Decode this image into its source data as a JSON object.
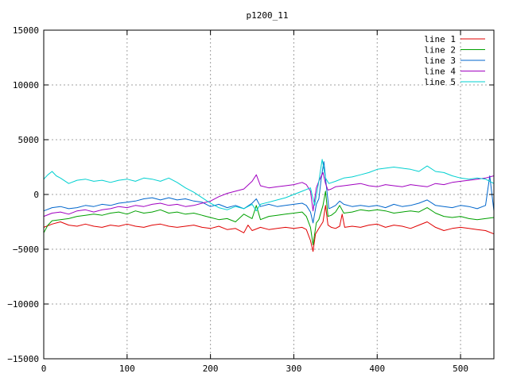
{
  "chart_data": {
    "type": "line",
    "title": "p1200_11",
    "xlabel": "",
    "ylabel": "",
    "xlim": [
      0,
      540
    ],
    "ylim": [
      -15000,
      15000
    ],
    "xticks": [
      0,
      100,
      200,
      300,
      400,
      500
    ],
    "yticks": [
      -15000,
      -10000,
      -5000,
      0,
      5000,
      10000,
      15000
    ],
    "xtick_labels": [
      "0",
      "100",
      "200",
      "300",
      "400",
      "500"
    ],
    "ytick_labels": [
      "−15000",
      "−10000",
      "−5000",
      "0",
      "5000",
      "10000",
      "15000"
    ],
    "grid": true,
    "legend_position": "top-right",
    "series": [
      {
        "name": "line 1",
        "color": "#e00000",
        "points": [
          [
            0,
            -3000
          ],
          [
            10,
            -2700
          ],
          [
            20,
            -2500
          ],
          [
            30,
            -2800
          ],
          [
            40,
            -2900
          ],
          [
            50,
            -2700
          ],
          [
            60,
            -2900
          ],
          [
            70,
            -3000
          ],
          [
            80,
            -2800
          ],
          [
            90,
            -2900
          ],
          [
            100,
            -2700
          ],
          [
            110,
            -2900
          ],
          [
            120,
            -3000
          ],
          [
            130,
            -2800
          ],
          [
            140,
            -2700
          ],
          [
            150,
            -2900
          ],
          [
            160,
            -3000
          ],
          [
            170,
            -2900
          ],
          [
            180,
            -2800
          ],
          [
            190,
            -3000
          ],
          [
            200,
            -3100
          ],
          [
            210,
            -2900
          ],
          [
            220,
            -3200
          ],
          [
            230,
            -3100
          ],
          [
            240,
            -3500
          ],
          [
            245,
            -2800
          ],
          [
            250,
            -3300
          ],
          [
            260,
            -3000
          ],
          [
            270,
            -3200
          ],
          [
            280,
            -3100
          ],
          [
            290,
            -3000
          ],
          [
            300,
            -3100
          ],
          [
            310,
            -3000
          ],
          [
            315,
            -3200
          ],
          [
            320,
            -4200
          ],
          [
            323,
            -5200
          ],
          [
            326,
            -3600
          ],
          [
            330,
            -3100
          ],
          [
            335,
            -2500
          ],
          [
            338,
            -1000
          ],
          [
            341,
            -2800
          ],
          [
            345,
            -3000
          ],
          [
            350,
            -3100
          ],
          [
            355,
            -2900
          ],
          [
            358,
            -1800
          ],
          [
            361,
            -3000
          ],
          [
            370,
            -2900
          ],
          [
            380,
            -3000
          ],
          [
            390,
            -2800
          ],
          [
            400,
            -2700
          ],
          [
            410,
            -3000
          ],
          [
            420,
            -2800
          ],
          [
            430,
            -2900
          ],
          [
            440,
            -3100
          ],
          [
            450,
            -2800
          ],
          [
            460,
            -2500
          ],
          [
            470,
            -3000
          ],
          [
            480,
            -3300
          ],
          [
            490,
            -3100
          ],
          [
            500,
            -3000
          ],
          [
            510,
            -3100
          ],
          [
            520,
            -3200
          ],
          [
            530,
            -3300
          ],
          [
            540,
            -3600
          ]
        ]
      },
      {
        "name": "line 2",
        "color": "#00a000",
        "points": [
          [
            0,
            -3500
          ],
          [
            5,
            -2800
          ],
          [
            10,
            -2400
          ],
          [
            20,
            -2300
          ],
          [
            30,
            -2200
          ],
          [
            40,
            -2000
          ],
          [
            50,
            -1900
          ],
          [
            60,
            -1800
          ],
          [
            70,
            -1900
          ],
          [
            80,
            -1700
          ],
          [
            90,
            -1600
          ],
          [
            100,
            -1800
          ],
          [
            110,
            -1500
          ],
          [
            120,
            -1700
          ],
          [
            130,
            -1600
          ],
          [
            140,
            -1400
          ],
          [
            150,
            -1700
          ],
          [
            160,
            -1600
          ],
          [
            170,
            -1800
          ],
          [
            180,
            -1700
          ],
          [
            190,
            -1900
          ],
          [
            200,
            -2100
          ],
          [
            210,
            -2300
          ],
          [
            220,
            -2200
          ],
          [
            230,
            -2500
          ],
          [
            240,
            -1800
          ],
          [
            250,
            -2200
          ],
          [
            255,
            -1000
          ],
          [
            260,
            -2300
          ],
          [
            270,
            -2000
          ],
          [
            280,
            -1900
          ],
          [
            290,
            -1800
          ],
          [
            300,
            -1700
          ],
          [
            310,
            -1600
          ],
          [
            315,
            -2000
          ],
          [
            320,
            -3000
          ],
          [
            323,
            -4600
          ],
          [
            327,
            -2600
          ],
          [
            330,
            -2300
          ],
          [
            335,
            -1000
          ],
          [
            338,
            300
          ],
          [
            341,
            -2000
          ],
          [
            345,
            -1900
          ],
          [
            350,
            -1600
          ],
          [
            355,
            -1000
          ],
          [
            360,
            -1700
          ],
          [
            370,
            -1600
          ],
          [
            380,
            -1400
          ],
          [
            390,
            -1500
          ],
          [
            400,
            -1400
          ],
          [
            410,
            -1500
          ],
          [
            420,
            -1700
          ],
          [
            430,
            -1600
          ],
          [
            440,
            -1500
          ],
          [
            450,
            -1600
          ],
          [
            460,
            -1200
          ],
          [
            470,
            -1700
          ],
          [
            480,
            -2000
          ],
          [
            490,
            -2100
          ],
          [
            500,
            -2000
          ],
          [
            510,
            -2200
          ],
          [
            520,
            -2300
          ],
          [
            530,
            -2200
          ],
          [
            540,
            -2100
          ]
        ]
      },
      {
        "name": "line 3",
        "color": "#0066cc",
        "points": [
          [
            0,
            -1500
          ],
          [
            10,
            -1200
          ],
          [
            20,
            -1100
          ],
          [
            30,
            -1300
          ],
          [
            40,
            -1200
          ],
          [
            50,
            -1000
          ],
          [
            60,
            -1100
          ],
          [
            70,
            -900
          ],
          [
            80,
            -1000
          ],
          [
            90,
            -800
          ],
          [
            100,
            -700
          ],
          [
            110,
            -600
          ],
          [
            120,
            -400
          ],
          [
            130,
            -300
          ],
          [
            140,
            -500
          ],
          [
            150,
            -300
          ],
          [
            160,
            -500
          ],
          [
            170,
            -400
          ],
          [
            180,
            -600
          ],
          [
            190,
            -700
          ],
          [
            200,
            -1100
          ],
          [
            210,
            -900
          ],
          [
            220,
            -1200
          ],
          [
            230,
            -1000
          ],
          [
            240,
            -1300
          ],
          [
            250,
            -800
          ],
          [
            255,
            -400
          ],
          [
            260,
            -1100
          ],
          [
            270,
            -900
          ],
          [
            280,
            -1100
          ],
          [
            290,
            -1000
          ],
          [
            300,
            -900
          ],
          [
            310,
            -800
          ],
          [
            315,
            -1000
          ],
          [
            320,
            -1600
          ],
          [
            323,
            -2600
          ],
          [
            327,
            -900
          ],
          [
            330,
            -400
          ],
          [
            333,
            1500
          ],
          [
            336,
            3000
          ],
          [
            339,
            800
          ],
          [
            342,
            -1300
          ],
          [
            345,
            -1200
          ],
          [
            350,
            -1000
          ],
          [
            355,
            -600
          ],
          [
            360,
            -900
          ],
          [
            370,
            -1100
          ],
          [
            380,
            -1000
          ],
          [
            390,
            -1100
          ],
          [
            400,
            -1000
          ],
          [
            410,
            -1200
          ],
          [
            420,
            -900
          ],
          [
            430,
            -1100
          ],
          [
            440,
            -1000
          ],
          [
            450,
            -800
          ],
          [
            460,
            -500
          ],
          [
            470,
            -1000
          ],
          [
            480,
            -1100
          ],
          [
            490,
            -1200
          ],
          [
            500,
            -1000
          ],
          [
            510,
            -1100
          ],
          [
            520,
            -1300
          ],
          [
            530,
            -1000
          ],
          [
            535,
            1700
          ],
          [
            540,
            -1500
          ]
        ]
      },
      {
        "name": "line 4",
        "color": "#a000c0",
        "points": [
          [
            0,
            -2000
          ],
          [
            10,
            -1700
          ],
          [
            20,
            -1600
          ],
          [
            30,
            -1800
          ],
          [
            40,
            -1500
          ],
          [
            50,
            -1400
          ],
          [
            60,
            -1600
          ],
          [
            70,
            -1400
          ],
          [
            80,
            -1300
          ],
          [
            90,
            -1100
          ],
          [
            100,
            -1200
          ],
          [
            110,
            -1000
          ],
          [
            120,
            -1100
          ],
          [
            130,
            -900
          ],
          [
            140,
            -800
          ],
          [
            150,
            -1000
          ],
          [
            160,
            -900
          ],
          [
            170,
            -1100
          ],
          [
            180,
            -1000
          ],
          [
            190,
            -800
          ],
          [
            200,
            -600
          ],
          [
            210,
            -200
          ],
          [
            220,
            100
          ],
          [
            230,
            300
          ],
          [
            240,
            500
          ],
          [
            250,
            1200
          ],
          [
            255,
            1800
          ],
          [
            260,
            800
          ],
          [
            270,
            600
          ],
          [
            280,
            700
          ],
          [
            290,
            800
          ],
          [
            300,
            900
          ],
          [
            310,
            1100
          ],
          [
            315,
            900
          ],
          [
            320,
            300
          ],
          [
            323,
            -1500
          ],
          [
            327,
            600
          ],
          [
            330,
            1200
          ],
          [
            335,
            2000
          ],
          [
            338,
            1000
          ],
          [
            341,
            400
          ],
          [
            345,
            500
          ],
          [
            350,
            700
          ],
          [
            360,
            800
          ],
          [
            370,
            900
          ],
          [
            380,
            1000
          ],
          [
            390,
            800
          ],
          [
            400,
            700
          ],
          [
            410,
            900
          ],
          [
            420,
            800
          ],
          [
            430,
            700
          ],
          [
            440,
            900
          ],
          [
            450,
            800
          ],
          [
            460,
            700
          ],
          [
            470,
            1000
          ],
          [
            480,
            900
          ],
          [
            490,
            1100
          ],
          [
            500,
            1200
          ],
          [
            510,
            1300
          ],
          [
            520,
            1400
          ],
          [
            530,
            1500
          ],
          [
            540,
            1700
          ]
        ]
      },
      {
        "name": "line 5",
        "color": "#00d0d0",
        "points": [
          [
            0,
            1400
          ],
          [
            5,
            1800
          ],
          [
            10,
            2100
          ],
          [
            15,
            1700
          ],
          [
            20,
            1500
          ],
          [
            30,
            1000
          ],
          [
            40,
            1300
          ],
          [
            50,
            1400
          ],
          [
            60,
            1200
          ],
          [
            70,
            1300
          ],
          [
            80,
            1100
          ],
          [
            90,
            1300
          ],
          [
            100,
            1400
          ],
          [
            110,
            1200
          ],
          [
            120,
            1500
          ],
          [
            130,
            1400
          ],
          [
            140,
            1200
          ],
          [
            150,
            1500
          ],
          [
            160,
            1100
          ],
          [
            170,
            600
          ],
          [
            180,
            200
          ],
          [
            190,
            -300
          ],
          [
            200,
            -800
          ],
          [
            210,
            -1200
          ],
          [
            220,
            -1400
          ],
          [
            230,
            -1100
          ],
          [
            240,
            -1300
          ],
          [
            250,
            -900
          ],
          [
            255,
            -1500
          ],
          [
            260,
            -900
          ],
          [
            270,
            -700
          ],
          [
            280,
            -500
          ],
          [
            290,
            -300
          ],
          [
            300,
            0
          ],
          [
            310,
            300
          ],
          [
            320,
            600
          ],
          [
            325,
            -1000
          ],
          [
            330,
            1200
          ],
          [
            334,
            3200
          ],
          [
            338,
            1500
          ],
          [
            342,
            1000
          ],
          [
            350,
            1200
          ],
          [
            360,
            1500
          ],
          [
            370,
            1600
          ],
          [
            380,
            1800
          ],
          [
            390,
            2000
          ],
          [
            400,
            2300
          ],
          [
            410,
            2400
          ],
          [
            420,
            2500
          ],
          [
            430,
            2400
          ],
          [
            440,
            2300
          ],
          [
            450,
            2100
          ],
          [
            460,
            2600
          ],
          [
            470,
            2100
          ],
          [
            480,
            2000
          ],
          [
            490,
            1700
          ],
          [
            500,
            1500
          ],
          [
            510,
            1400
          ],
          [
            520,
            1500
          ],
          [
            530,
            1400
          ],
          [
            540,
            1000
          ]
        ]
      }
    ]
  }
}
